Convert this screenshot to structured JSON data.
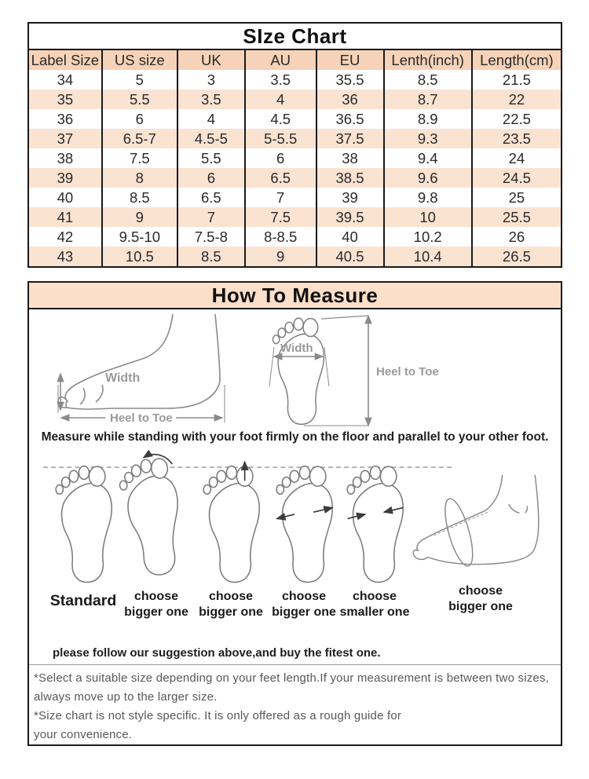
{
  "colors": {
    "border": "#1a1a1a",
    "table_header_bg": "#f6d2b8",
    "row_alt_bg": "#fbe3d2",
    "banner_bg": "#fbdfc8",
    "sketch_text": "#9a9a9a",
    "note_text": "#55585c"
  },
  "size_chart": {
    "title": "SIze Chart",
    "columns": [
      "Label Size",
      "US size",
      "UK",
      "AU",
      "EU",
      "Lenth(inch)",
      "Length(cm)"
    ],
    "rows": [
      [
        "34",
        "5",
        "3",
        "3.5",
        "35.5",
        "8.5",
        "21.5"
      ],
      [
        "35",
        "5.5",
        "3.5",
        "4",
        "36",
        "8.7",
        "22"
      ],
      [
        "36",
        "6",
        "4",
        "4.5",
        "36.5",
        "8.9",
        "22.5"
      ],
      [
        "37",
        "6.5-7",
        "4.5-5",
        "5-5.5",
        "37.5",
        "9.3",
        "23.5"
      ],
      [
        "38",
        "7.5",
        "5.5",
        "6",
        "38",
        "9.4",
        "24"
      ],
      [
        "39",
        "8",
        "6",
        "6.5",
        "38.5",
        "9.6",
        "24.5"
      ],
      [
        "40",
        "8.5",
        "6.5",
        "7",
        "39",
        "9.8",
        "25"
      ],
      [
        "41",
        "9",
        "7",
        "7.5",
        "39.5",
        "10",
        "25.5"
      ],
      [
        "42",
        "9.5-10",
        "7.5-8",
        "8-8.5",
        "40",
        "10.2",
        "26"
      ],
      [
        "43",
        "10.5",
        "8.5",
        "9",
        "40.5",
        "10.4",
        "26.5"
      ]
    ]
  },
  "how_to_measure": {
    "title": "How To Measure",
    "labels": {
      "width": "Width",
      "heel_to_toe": "Heel to Toe"
    },
    "standing_note": "Measure while standing with your foot firmly on the floor and parallel to your other foot.",
    "feet": [
      {
        "line1": "Standard",
        "line2": ""
      },
      {
        "line1": "choose",
        "line2": "bigger one"
      },
      {
        "line1": "choose",
        "line2": "bigger one"
      },
      {
        "line1": "choose",
        "line2": "bigger one"
      },
      {
        "line1": "choose",
        "line2": "smaller one"
      },
      {
        "line1": "choose",
        "line2": "bigger one"
      }
    ],
    "suggestion_note": "please follow our suggestion above,and buy the fitest one."
  },
  "footnotes": {
    "lines": [
      "*Select a suitable size depending on your feet length.If your measurement is between two sizes,",
      "always move up to the larger size.",
      "*Size chart is not style specific. It is only offered as a rough guide for",
      "your convenience."
    ]
  }
}
